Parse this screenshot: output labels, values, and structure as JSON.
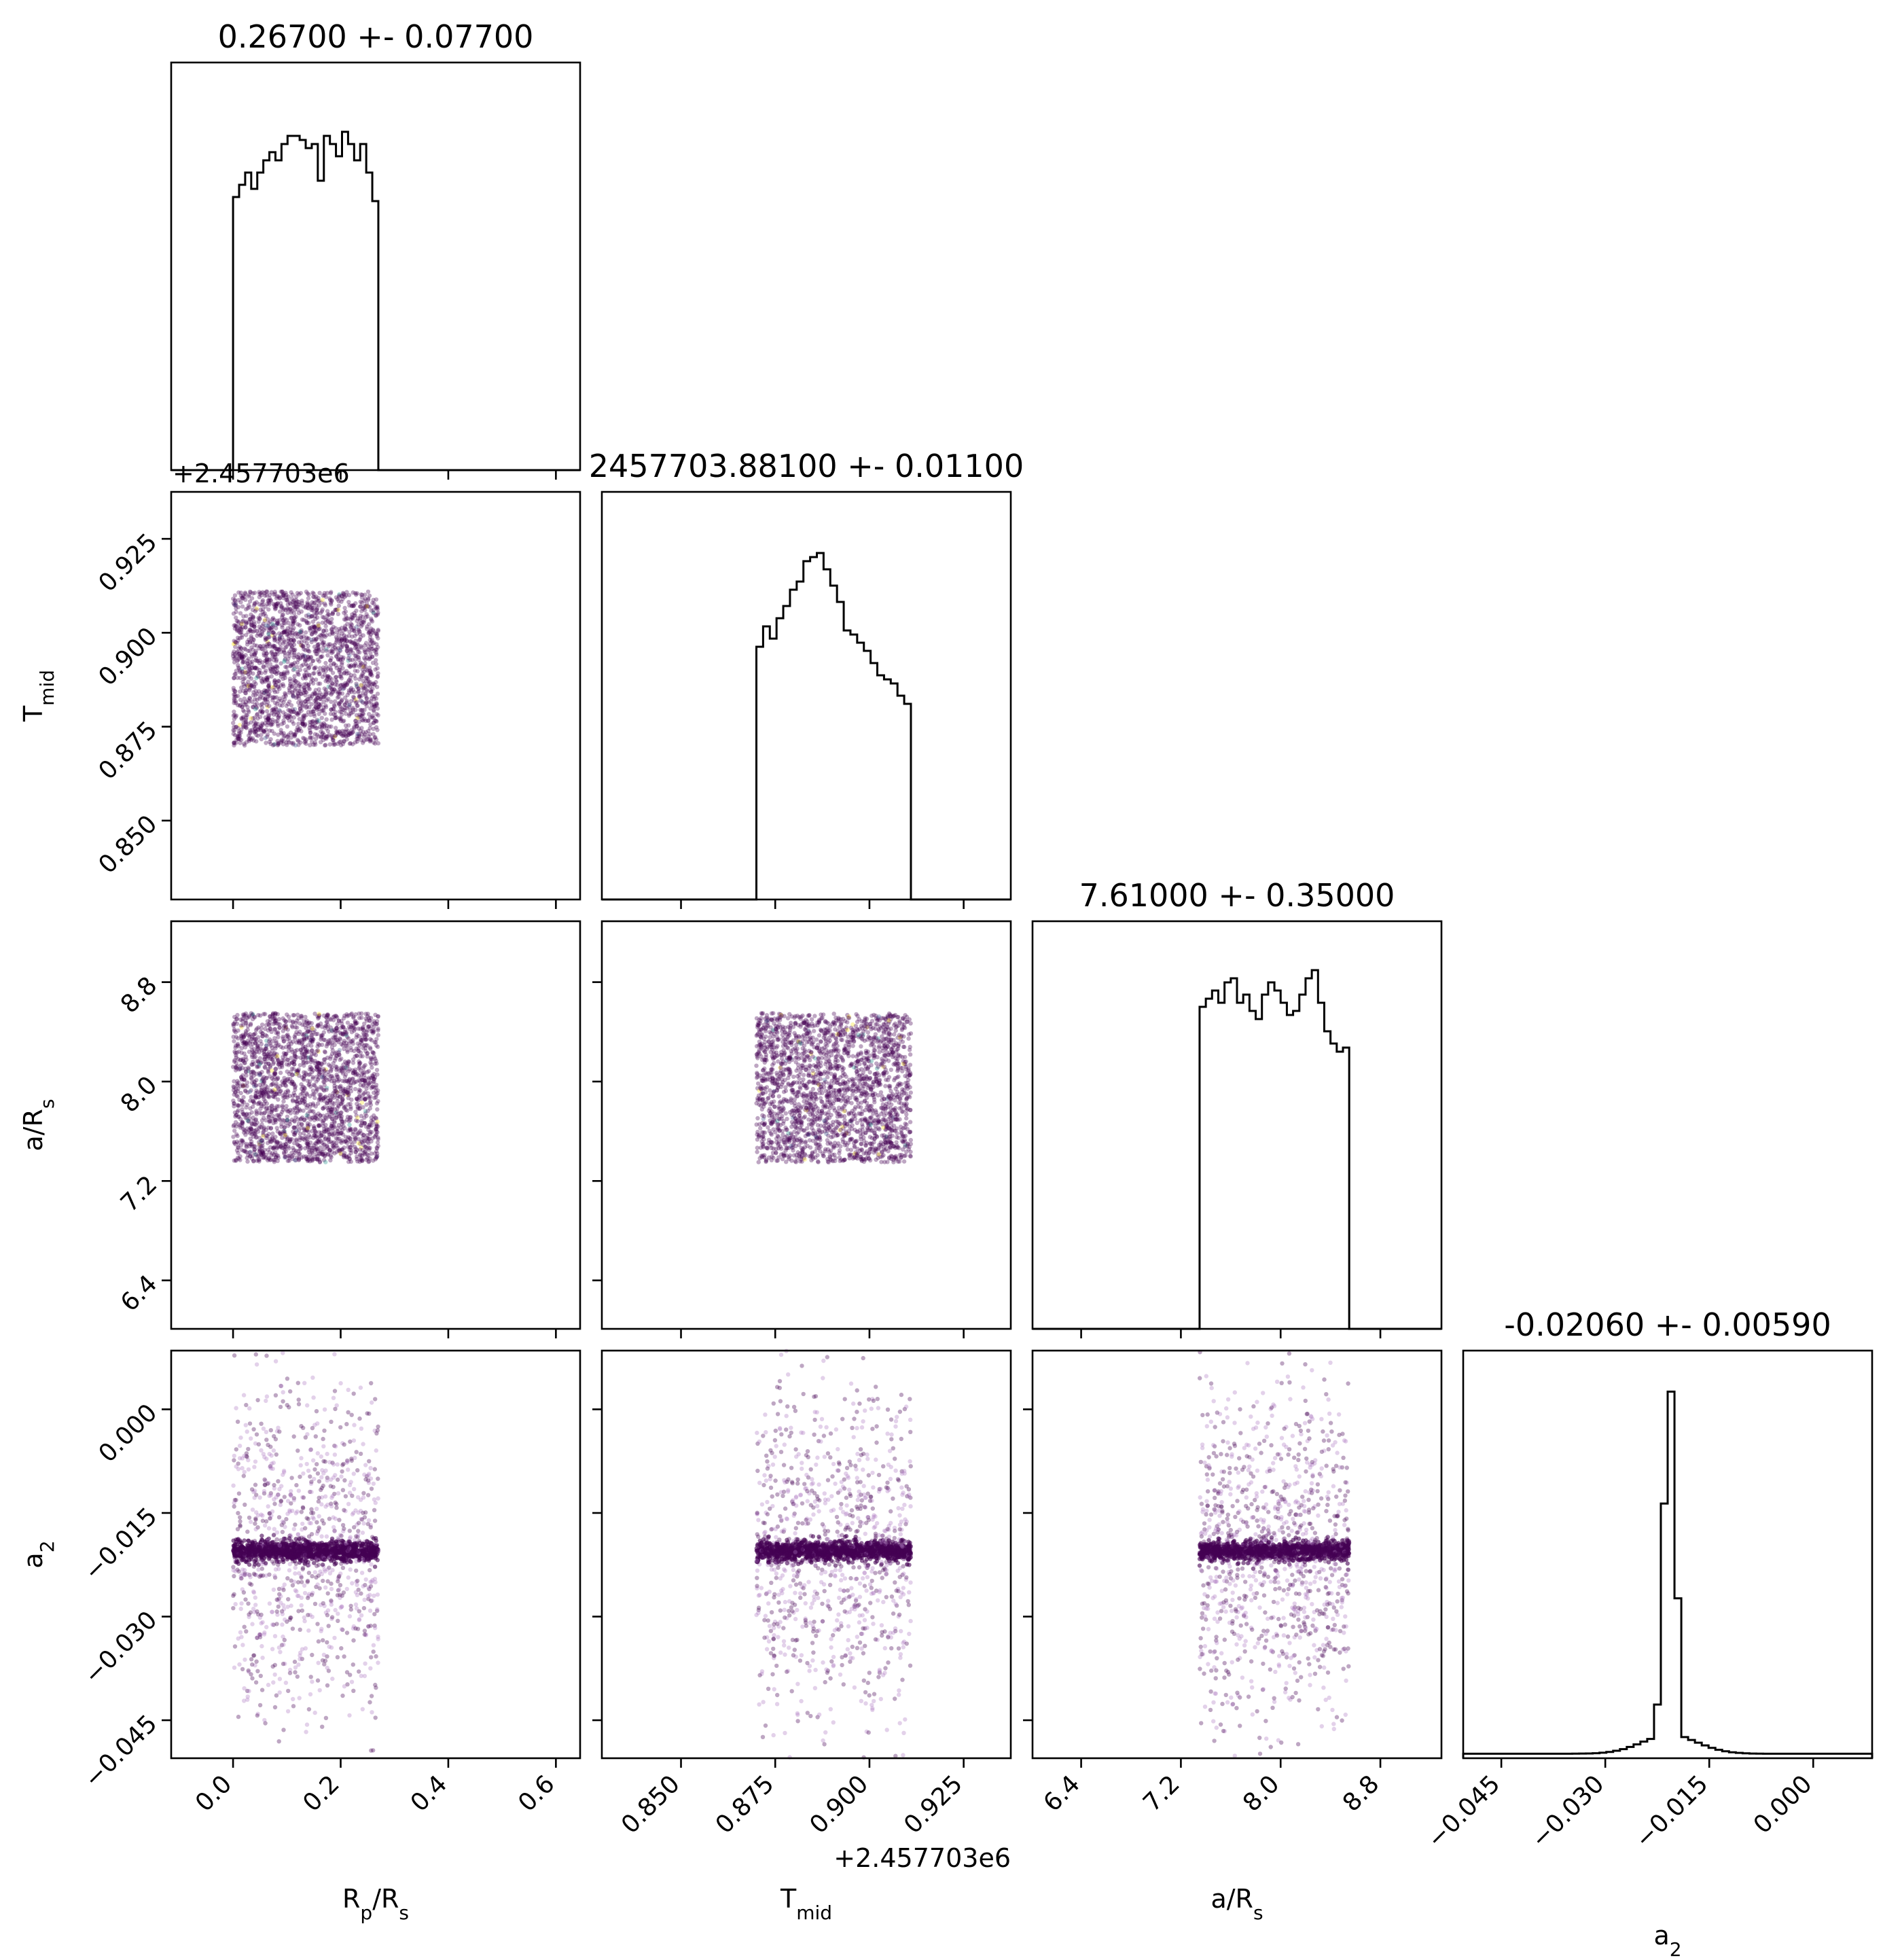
{
  "colors": {
    "scatter_dense": "#440154",
    "scatter_light": "#b07ac4",
    "accents": [
      "#21918c",
      "#fde725",
      "#3b528b"
    ]
  },
  "chart_data": {
    "type": "corner",
    "parameters": [
      {
        "name": "Rp/Rs",
        "label_main": "R",
        "label_sub": "p",
        "label_tail": "/R",
        "label_sub2": "s",
        "range": [
          -0.115,
          0.645
        ],
        "ticks": [
          0.0,
          0.2,
          0.4,
          0.6
        ],
        "tick_labels": [
          "0.0",
          "0.2",
          "0.4",
          "0.6"
        ],
        "title": "0.26700 +- 0.07700",
        "offset_label": "",
        "samples_range": [
          0.0,
          0.27
        ],
        "hist": [
          0.67,
          0.7,
          0.73,
          0.69,
          0.73,
          0.76,
          0.78,
          0.76,
          0.8,
          0.82,
          0.82,
          0.81,
          0.79,
          0.8,
          0.71,
          0.82,
          0.8,
          0.77,
          0.83,
          0.8,
          0.76,
          0.8,
          0.73,
          0.66
        ]
      },
      {
        "name": "Tmid",
        "label_main": "T",
        "label_sub": "mid",
        "label_tail": "",
        "label_sub2": "",
        "range": [
          0.829,
          0.9375
        ],
        "ticks": [
          0.85,
          0.875,
          0.9,
          0.925
        ],
        "tick_labels": [
          "0.850",
          "0.875",
          "0.900",
          "0.925"
        ],
        "title": "2457703.88100 +- 0.01100",
        "offset_label": "+2.457703e6",
        "samples_range": [
          0.87,
          0.911
        ],
        "hist": [
          0.62,
          0.67,
          0.64,
          0.69,
          0.72,
          0.76,
          0.78,
          0.83,
          0.84,
          0.85,
          0.81,
          0.77,
          0.73,
          0.66,
          0.65,
          0.63,
          0.61,
          0.58,
          0.55,
          0.54,
          0.53,
          0.5,
          0.48
        ]
      },
      {
        "name": "a/Rs",
        "label_main": "a/R",
        "label_sub": "s",
        "label_tail": "",
        "label_sub2": "",
        "range": [
          6.01,
          9.29
        ],
        "ticks": [
          6.4,
          7.2,
          8.0,
          8.8
        ],
        "tick_labels": [
          "6.4",
          "7.2",
          "8.0",
          "8.8"
        ],
        "title": "7.61000 +- 0.35000",
        "offset_label": "",
        "samples_range": [
          7.35,
          8.55
        ],
        "hist": [
          0.79,
          0.81,
          0.83,
          0.8,
          0.85,
          0.86,
          0.8,
          0.82,
          0.78,
          0.76,
          0.82,
          0.85,
          0.83,
          0.8,
          0.77,
          0.78,
          0.82,
          0.86,
          0.88,
          0.8,
          0.73,
          0.7,
          0.68,
          0.69
        ]
      },
      {
        "name": "a2",
        "label_main": "a",
        "label_sub": "2",
        "label_tail": "",
        "label_sub2": "",
        "range": [
          -0.0505,
          0.0085
        ],
        "ticks": [
          -0.045,
          -0.03,
          -0.015,
          0.0
        ],
        "tick_labels": [
          "−0.045",
          "−0.030",
          "−0.015",
          "0.000"
        ],
        "title": "-0.02060 +- 0.00590",
        "offset_label": "",
        "samples_range": [
          -0.0505,
          0.0085
        ],
        "hist_center": -0.0207,
        "hist_peak": 1.0,
        "hist_width": 0.0009,
        "hist_floor": 0.012,
        "hist_mid": 0.05
      }
    ],
    "scatter": {
      "samples_per_panel": 2200,
      "a2_center": -0.0205,
      "a2_core_sd": 0.0007
    },
    "grid": false,
    "legend": "none"
  }
}
